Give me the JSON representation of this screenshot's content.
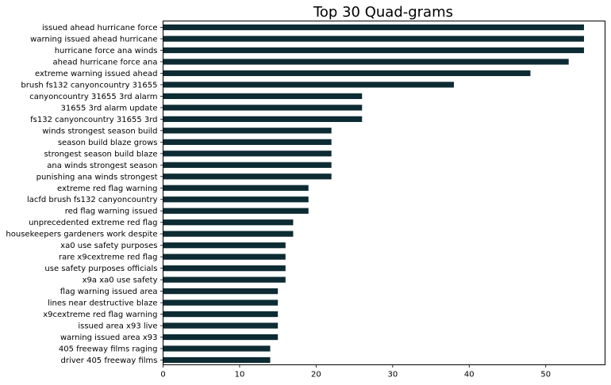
{
  "chart_data": {
    "type": "bar",
    "orientation": "horizontal",
    "title": "Top 30 Quad-grams",
    "xlabel": "",
    "ylabel": "",
    "xlim": [
      0,
      57.75
    ],
    "xticks": [
      0,
      10,
      20,
      30,
      40,
      50
    ],
    "grid": false,
    "bar_color": "#0d2b33",
    "categories": [
      "issued ahead hurricane force",
      "warning issued ahead hurricane",
      "hurricane force ana winds",
      "ahead hurricane force ana",
      "extreme warning issued ahead",
      "brush fs132 canyoncountry 31655",
      "canyoncountry 31655 3rd alarm",
      "31655 3rd alarm update",
      "fs132 canyoncountry 31655 3rd",
      "winds strongest season build",
      "season build blaze grows",
      "strongest season build blaze",
      "ana winds strongest season",
      "punishing ana winds strongest",
      "extreme red flag warning",
      "lacfd brush fs132 canyoncountry",
      "red flag warning issued",
      "unprecedented extreme red flag",
      "housekeepers gardeners work despite",
      "xa0 use safety purposes",
      "rare x9cextreme red flag",
      "use safety purposes officials",
      "x9a xa0 use safety",
      "flag warning issued area",
      "lines near destructive blaze",
      "x9cextreme red flag warning",
      "issued area x93 live",
      "warning issued area x93",
      "405 freeway films raging",
      "driver 405 freeway films"
    ],
    "values": [
      55,
      55,
      55,
      53,
      48,
      38,
      26,
      26,
      26,
      22,
      22,
      22,
      22,
      22,
      19,
      19,
      19,
      17,
      17,
      16,
      16,
      16,
      16,
      15,
      15,
      15,
      15,
      15,
      14,
      14
    ]
  }
}
